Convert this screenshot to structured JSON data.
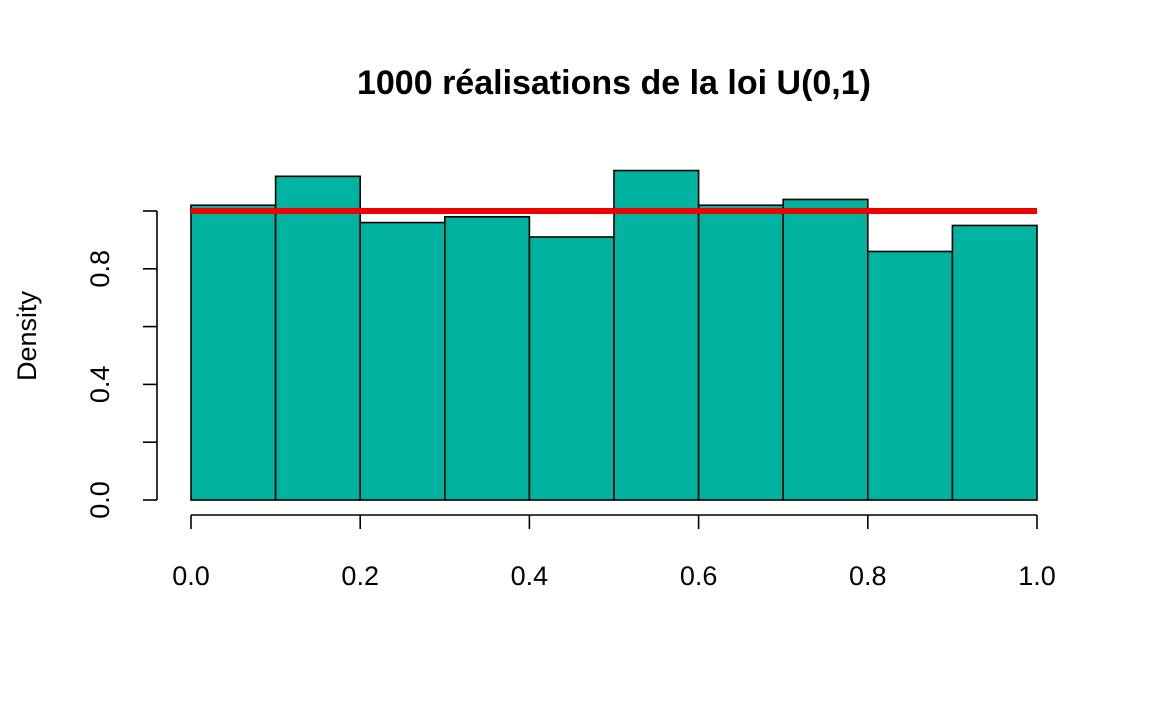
{
  "chart_data": {
    "type": "bar",
    "title": "1000 réalisations de la loi U(0,1)",
    "xlabel": "",
    "ylabel": "Density",
    "bins": [
      {
        "x0": 0.0,
        "x1": 0.1,
        "value": 1.02
      },
      {
        "x0": 0.1,
        "x1": 0.2,
        "value": 1.12
      },
      {
        "x0": 0.2,
        "x1": 0.3,
        "value": 0.96
      },
      {
        "x0": 0.3,
        "x1": 0.4,
        "value": 0.98
      },
      {
        "x0": 0.4,
        "x1": 0.5,
        "value": 0.91
      },
      {
        "x0": 0.5,
        "x1": 0.6,
        "value": 1.14
      },
      {
        "x0": 0.6,
        "x1": 0.7,
        "value": 1.02
      },
      {
        "x0": 0.7,
        "x1": 0.8,
        "value": 1.04
      },
      {
        "x0": 0.8,
        "x1": 0.9,
        "value": 0.86
      },
      {
        "x0": 0.9,
        "x1": 1.0,
        "value": 0.95
      }
    ],
    "reference_line": {
      "x": [
        0,
        1
      ],
      "y": [
        1,
        1
      ],
      "color": "#ee0000"
    },
    "xlim": [
      0,
      1
    ],
    "ylim": [
      0,
      1.2
    ],
    "x_ticks": [
      0.0,
      0.2,
      0.4,
      0.6,
      0.8,
      1.0
    ],
    "x_tick_labels": [
      "0.0",
      "0.2",
      "0.4",
      "0.6",
      "0.8",
      "1.0"
    ],
    "y_ticks": [
      0.0,
      0.2,
      0.4,
      0.6,
      0.8,
      1.0
    ],
    "y_tick_labels": [
      "0.0",
      "",
      "0.4",
      "",
      "0.8",
      ""
    ],
    "bar_color": "#00b3a0",
    "grid": false,
    "legend": "none"
  }
}
